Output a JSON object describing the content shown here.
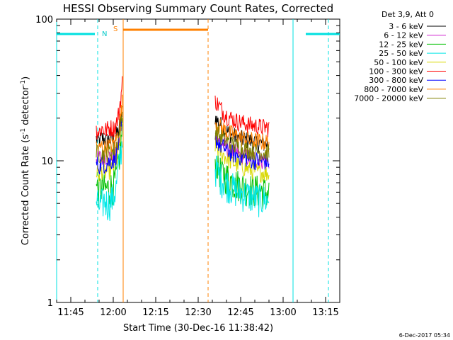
{
  "chart_data": {
    "type": "line",
    "title": "HESSI Observing Summary Count Rates, Corrected",
    "xlabel": "Start Time (30-Dec-16 11:38:42)",
    "ylabel_main": "Corrected Count Rate (s",
    "ylabel_sup1": "-1",
    "ylabel_mid": " detector",
    "ylabel_sup2": "-1",
    "ylabel_end": ")",
    "y_scale": "log",
    "ylim": [
      1,
      100
    ],
    "xlim_minutes_from_1140": [
      0,
      100
    ],
    "x_ticks": [
      {
        "m": 5,
        "label": "11:45"
      },
      {
        "m": 20,
        "label": "12:00"
      },
      {
        "m": 35,
        "label": "12:15"
      },
      {
        "m": 50,
        "label": "12:30"
      },
      {
        "m": 65,
        "label": "12:45"
      },
      {
        "m": 80,
        "label": "13:00"
      },
      {
        "m": 95,
        "label": "13:15"
      }
    ],
    "y_ticks": [
      {
        "v": 1,
        "label": "1"
      },
      {
        "v": 10,
        "label": "10"
      },
      {
        "v": 100,
        "label": "100"
      }
    ],
    "legend_header": "Det 3,9, Att 0",
    "legend_position": "right",
    "footer_date": "6-Dec-2017 05:34",
    "series": [
      {
        "name": "3 - 6 keV",
        "color": "#000000",
        "seg1": [
          [
            14.0,
            14.3
          ],
          [
            15.0,
            13.8
          ],
          [
            16.0,
            14.6
          ],
          [
            17.0,
            14.1
          ],
          [
            18.0,
            13.9
          ],
          [
            19.0,
            14.4
          ],
          [
            20.0,
            14.0
          ],
          [
            21.0,
            15.0
          ],
          [
            22.0,
            16.5
          ],
          [
            23.0,
            21.0
          ],
          [
            23.3,
            24.0
          ]
        ],
        "seg2": [
          [
            56.0,
            20.5
          ],
          [
            57.0,
            19.0
          ],
          [
            58.0,
            18.0
          ],
          [
            59.0,
            17.0
          ],
          [
            60.0,
            16.2
          ],
          [
            62.0,
            15.3
          ],
          [
            64.0,
            14.6
          ],
          [
            66.0,
            14.2
          ],
          [
            68.0,
            13.9
          ],
          [
            70.0,
            13.5
          ],
          [
            72.0,
            13.4
          ],
          [
            74.0,
            13.2
          ],
          [
            75.0,
            13.0
          ]
        ]
      },
      {
        "name": "6 - 12 keV",
        "color": "#d020d0",
        "seg1": [
          [
            14.0,
            10.8
          ],
          [
            16.0,
            10.5
          ],
          [
            18.0,
            10.9
          ],
          [
            20.0,
            10.6
          ],
          [
            21.0,
            11.5
          ],
          [
            22.0,
            13.5
          ],
          [
            23.0,
            17.0
          ],
          [
            23.3,
            19.0
          ]
        ],
        "seg2": [
          [
            56.0,
            15.5
          ],
          [
            58.0,
            13.5
          ],
          [
            60.0,
            12.4
          ],
          [
            62.0,
            11.6
          ],
          [
            64.0,
            11.2
          ],
          [
            66.0,
            10.9
          ],
          [
            68.0,
            10.6
          ],
          [
            70.0,
            10.4
          ],
          [
            72.0,
            10.2
          ],
          [
            75.0,
            10.0
          ]
        ]
      },
      {
        "name": "12 - 25 keV",
        "color": "#00c000",
        "seg1": [
          [
            14.0,
            6.5
          ],
          [
            15.0,
            6.2
          ],
          [
            16.0,
            6.6
          ],
          [
            17.0,
            6.3
          ],
          [
            18.0,
            6.4
          ],
          [
            19.0,
            6.6
          ],
          [
            20.0,
            6.7
          ],
          [
            21.0,
            7.5
          ],
          [
            22.0,
            10.0
          ],
          [
            23.0,
            15.0
          ],
          [
            23.3,
            17.0
          ]
        ],
        "seg2": [
          [
            56.0,
            10.5
          ],
          [
            57.0,
            9.0
          ],
          [
            58.0,
            8.4
          ],
          [
            60.0,
            7.8
          ],
          [
            62.0,
            7.2
          ],
          [
            64.0,
            6.9
          ],
          [
            66.0,
            6.6
          ],
          [
            68.0,
            6.4
          ],
          [
            70.0,
            6.3
          ],
          [
            72.0,
            6.2
          ],
          [
            75.0,
            6.0
          ]
        ]
      },
      {
        "name": "25 - 50 keV",
        "color": "#00e8e8",
        "seg1": [
          [
            14.0,
            5.2
          ],
          [
            15.0,
            4.8
          ],
          [
            16.0,
            5.0
          ],
          [
            17.0,
            5.3
          ],
          [
            18.0,
            5.0
          ],
          [
            19.0,
            5.2
          ],
          [
            20.0,
            5.5
          ],
          [
            21.0,
            6.5
          ],
          [
            22.0,
            9.0
          ],
          [
            23.0,
            13.0
          ],
          [
            23.3,
            15.0
          ]
        ],
        "seg2": [
          [
            56.0,
            9.0
          ],
          [
            57.0,
            8.2
          ],
          [
            58.0,
            7.6
          ],
          [
            60.0,
            7.0
          ],
          [
            62.0,
            6.5
          ],
          [
            64.0,
            6.1
          ],
          [
            66.0,
            5.9
          ],
          [
            68.0,
            5.7
          ],
          [
            70.0,
            5.5
          ],
          [
            72.0,
            5.4
          ],
          [
            75.0,
            5.3
          ]
        ]
      },
      {
        "name": "50 - 100 keV",
        "color": "#d8d800",
        "seg1": [
          [
            14.0,
            8.4
          ],
          [
            15.0,
            8.0
          ],
          [
            16.0,
            8.6
          ],
          [
            17.0,
            8.3
          ],
          [
            18.0,
            8.5
          ],
          [
            19.0,
            8.7
          ],
          [
            20.0,
            9.0
          ],
          [
            21.0,
            10.0
          ],
          [
            22.0,
            12.5
          ],
          [
            23.0,
            17.0
          ],
          [
            23.3,
            19.0
          ]
        ],
        "seg2": [
          [
            56.0,
            13.0
          ],
          [
            58.0,
            11.5
          ],
          [
            60.0,
            10.5
          ],
          [
            62.0,
            9.8
          ],
          [
            64.0,
            9.4
          ],
          [
            66.0,
            9.0
          ],
          [
            68.0,
            8.7
          ],
          [
            70.0,
            8.5
          ],
          [
            72.0,
            8.3
          ],
          [
            75.0,
            8.2
          ]
        ]
      },
      {
        "name": "100 - 300 keV",
        "color": "#ff0000",
        "seg1": [
          [
            14.0,
            16.6
          ],
          [
            15.0,
            16.0
          ],
          [
            16.0,
            17.0
          ],
          [
            17.0,
            16.4
          ],
          [
            18.0,
            16.8
          ],
          [
            19.0,
            17.2
          ],
          [
            20.0,
            17.0
          ],
          [
            21.0,
            18.0
          ],
          [
            22.0,
            22.0
          ],
          [
            23.0,
            32.0
          ],
          [
            23.3,
            38.0
          ]
        ],
        "seg2": [
          [
            56.0,
            27.0
          ],
          [
            57.0,
            25.0
          ],
          [
            58.0,
            23.5
          ],
          [
            59.0,
            22.0
          ],
          [
            60.0,
            21.0
          ],
          [
            62.0,
            19.8
          ],
          [
            64.0,
            19.0
          ],
          [
            66.0,
            18.5
          ],
          [
            68.0,
            18.0
          ],
          [
            70.0,
            17.7
          ],
          [
            72.0,
            17.4
          ],
          [
            75.0,
            17.2
          ]
        ]
      },
      {
        "name": "300 - 800 keV",
        "color": "#0000ff",
        "seg1": [
          [
            14.0,
            9.6
          ],
          [
            15.0,
            9.2
          ],
          [
            16.0,
            9.8
          ],
          [
            17.0,
            9.4
          ],
          [
            18.0,
            9.7
          ],
          [
            19.0,
            9.9
          ],
          [
            20.0,
            10.2
          ],
          [
            21.0,
            11.0
          ],
          [
            22.0,
            13.5
          ],
          [
            23.0,
            18.0
          ],
          [
            23.3,
            20.0
          ]
        ],
        "seg2": [
          [
            56.0,
            14.5
          ],
          [
            58.0,
            12.8
          ],
          [
            60.0,
            12.0
          ],
          [
            62.0,
            11.3
          ],
          [
            64.0,
            10.9
          ],
          [
            66.0,
            10.6
          ],
          [
            68.0,
            10.3
          ],
          [
            70.0,
            10.1
          ],
          [
            72.0,
            10.0
          ],
          [
            75.0,
            9.9
          ]
        ]
      },
      {
        "name": "800 - 7000 keV",
        "color": "#ff8000",
        "seg1": [
          [
            14.0,
            12.6
          ],
          [
            15.0,
            12.1
          ],
          [
            16.0,
            12.8
          ],
          [
            17.0,
            12.3
          ],
          [
            18.0,
            12.6
          ],
          [
            19.0,
            12.9
          ],
          [
            20.0,
            13.1
          ],
          [
            21.0,
            14.0
          ],
          [
            22.0,
            17.0
          ],
          [
            23.0,
            24.0
          ],
          [
            23.3,
            27.0
          ]
        ],
        "seg2": [
          [
            56.0,
            19.0
          ],
          [
            58.0,
            17.2
          ],
          [
            60.0,
            16.2
          ],
          [
            62.0,
            15.4
          ],
          [
            64.0,
            14.9
          ],
          [
            66.0,
            14.5
          ],
          [
            68.0,
            14.1
          ],
          [
            70.0,
            13.9
          ],
          [
            72.0,
            13.7
          ],
          [
            75.0,
            13.5
          ]
        ]
      },
      {
        "name": "7000 - 20000 keV",
        "color": "#808000",
        "seg1": [
          [
            14.0,
            11.4
          ],
          [
            16.0,
            11.1
          ],
          [
            18.0,
            11.5
          ],
          [
            20.0,
            11.7
          ],
          [
            21.0,
            12.5
          ],
          [
            22.0,
            15.0
          ],
          [
            23.0,
            20.0
          ],
          [
            23.3,
            22.0
          ]
        ],
        "seg2": [
          [
            56.0,
            16.5
          ],
          [
            58.0,
            14.8
          ],
          [
            60.0,
            13.8
          ],
          [
            62.0,
            13.0
          ],
          [
            64.0,
            12.6
          ],
          [
            66.0,
            12.2
          ],
          [
            68.0,
            11.9
          ],
          [
            70.0,
            11.7
          ],
          [
            72.0,
            11.5
          ],
          [
            75.0,
            11.4
          ]
        ]
      }
    ],
    "annotations": {
      "N_label": "N",
      "S_label": "S",
      "night_bars": [
        [
          0,
          13.5
        ],
        [
          88,
          100
        ]
      ],
      "saa_bar": [
        23.5,
        53.5
      ],
      "cyan_dashed": [
        14.5,
        96.0
      ],
      "cyan_solid": [
        0,
        83.5
      ],
      "orange_solid": [
        23.5
      ],
      "orange_dashed": [
        53.5
      ]
    }
  }
}
